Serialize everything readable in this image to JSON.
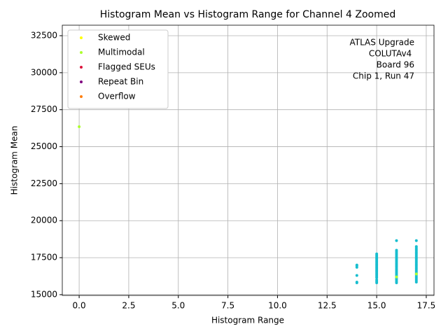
{
  "chart_data": {
    "type": "scatter",
    "title": "Histogram Mean vs Histogram Range for Channel 4 Zoomed",
    "xlabel": "Histogram Range",
    "ylabel": "Histogram Mean",
    "annotation": [
      "ATLAS Upgrade",
      "COLUTAv4 ",
      "Board 96",
      "Chip 1, Run 47"
    ],
    "xlim": [
      -0.85,
      17.89
    ],
    "ylim": [
      14950,
      33210
    ],
    "xticks": [
      {
        "value": 0,
        "label": "0.0"
      },
      2.5,
      {
        "value": 5,
        "label": "5.0"
      },
      7.5,
      {
        "value": 10,
        "label": "10.0"
      },
      12.5,
      {
        "value": 15,
        "label": "15.0"
      },
      17.5
    ],
    "yticks": [
      15000,
      17500,
      20000,
      22500,
      25000,
      27500,
      30000,
      32500
    ],
    "grid": true,
    "legend": "upper left",
    "series": [
      {
        "color": "#17becf",
        "x": [
          14,
          14,
          14,
          14,
          14,
          14,
          15,
          15,
          15,
          15,
          15,
          15,
          15,
          15,
          15,
          15,
          15,
          15,
          15,
          15,
          15,
          15,
          15,
          15,
          15,
          15,
          16,
          16,
          16,
          16,
          16,
          16,
          16,
          16,
          16,
          16,
          16,
          16,
          16,
          16,
          16,
          16,
          16,
          16,
          16,
          16,
          16,
          16,
          16,
          16,
          17,
          17,
          17,
          17,
          17,
          17,
          17,
          17,
          17,
          17,
          17,
          17,
          17,
          17,
          17,
          17,
          17,
          17,
          17,
          17,
          17,
          17,
          17,
          17,
          17,
          17
        ],
        "values": [
          15800,
          15850,
          16300,
          16850,
          16950,
          17000,
          15800,
          15900,
          16000,
          16150,
          16250,
          16350,
          16450,
          16550,
          16650,
          16750,
          16850,
          16950,
          17050,
          17150,
          17250,
          17350,
          17450,
          17550,
          17650,
          17750,
          15800,
          15900,
          16000,
          16100,
          16200,
          16300,
          16400,
          16500,
          16600,
          16700,
          16800,
          16900,
          17000,
          17100,
          17200,
          17300,
          17400,
          17500,
          17600,
          17700,
          17800,
          17900,
          18000,
          18650,
          15850,
          15950,
          16050,
          16150,
          16250,
          16350,
          16450,
          16550,
          16650,
          16750,
          16850,
          16950,
          17050,
          17150,
          17250,
          17350,
          17450,
          17550,
          17650,
          17750,
          17850,
          17950,
          18050,
          18150,
          18250,
          18650
        ]
      },
      {
        "name": "Skewed",
        "color": "#ffff00",
        "x": [],
        "values": []
      },
      {
        "name": "Multimodal",
        "color": "#adff2f",
        "x": [
          0,
          16,
          17
        ],
        "values": [
          26350,
          16200,
          16400
        ]
      },
      {
        "name": "Flagged SEUs",
        "color": "#dc143c",
        "x": [],
        "values": []
      },
      {
        "name": "Repeat Bin",
        "color": "#800080",
        "x": [],
        "values": []
      },
      {
        "name": "Overflow",
        "color": "#ff7f0e",
        "x": [],
        "values": []
      }
    ]
  }
}
